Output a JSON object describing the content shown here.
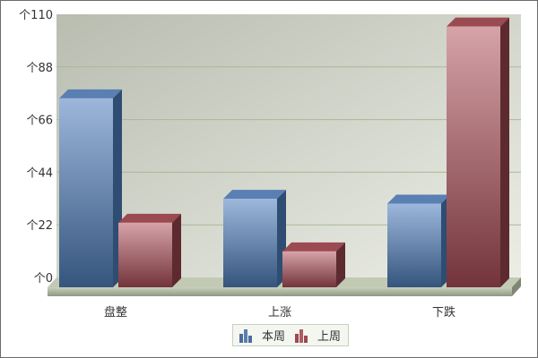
{
  "chart_data": {
    "type": "bar",
    "style": "3d-clustered",
    "categories": [
      "盘整",
      "上涨",
      "下跌"
    ],
    "series": [
      {
        "name": "本周",
        "values": [
          79,
          37,
          35
        ],
        "color": "#4a6d9c"
      },
      {
        "name": "上周",
        "values": [
          27,
          15,
          109
        ],
        "color": "#9b4a52"
      }
    ],
    "ylim": [
      0,
      110
    ],
    "yticks": [
      0,
      22,
      44,
      66,
      88,
      110
    ],
    "ytick_prefix": "个",
    "grid": true,
    "legend_position": "bottom"
  }
}
